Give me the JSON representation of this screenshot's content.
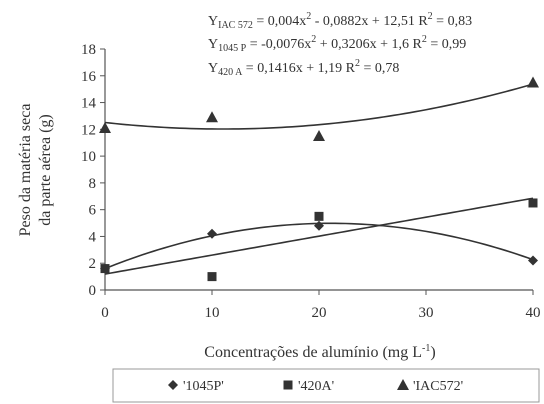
{
  "chart_data": {
    "type": "scatter",
    "x": [
      0,
      10,
      20,
      40
    ],
    "xlim": [
      0,
      40
    ],
    "ylim": [
      0,
      18
    ],
    "xticks": [
      "0",
      "10",
      "20",
      "30",
      "40"
    ],
    "yticks": [
      "0",
      "2",
      "4",
      "6",
      "8",
      "10",
      "12",
      "14",
      "16",
      "18"
    ],
    "xlabel_main": "Concentrações de alumínio (mg L",
    "xlabel_sup": "-1",
    "xlabel_tail": ")",
    "ylabel_line1": "Peso da matéria seca",
    "ylabel_line2": "da parte aérea (g)",
    "grid": false,
    "legend_position": "bottom",
    "series": [
      {
        "name": "'1045P'",
        "marker": "diamond",
        "values": [
          1.6,
          4.2,
          4.8,
          2.2
        ],
        "fit": {
          "a": -0.0076,
          "b": 0.3206,
          "c": 1.6
        }
      },
      {
        "name": "'420A'",
        "marker": "square",
        "values": [
          1.6,
          1.0,
          5.5,
          6.5
        ],
        "fit": {
          "a": 0,
          "b": 0.1416,
          "c": 1.19
        }
      },
      {
        "name": "'IAC572'",
        "marker": "triangle",
        "values": [
          12.1,
          12.9,
          11.5,
          15.5
        ],
        "fit": {
          "a": 0.004,
          "b": -0.0882,
          "c": 12.51
        }
      }
    ],
    "equations": [
      {
        "prefix": "Y",
        "sub": "IAC 572",
        "text1": " = 0,004x",
        "sup1": "2",
        "text2": " - 0,0882x + 12,51  R",
        "sup2": "2",
        "text3": " = 0,83"
      },
      {
        "prefix": "Y",
        "sub": "1045 P",
        "text1": " = -0,0076x",
        "sup1": "2",
        "text2": " + 0,3206x + 1,6  R",
        "sup2": "2",
        "text3": " = 0,99"
      },
      {
        "prefix": "Y",
        "sub": "420 A",
        "text1": " = 0,1416x + 1,19  R",
        "sup1": "2",
        "text2": " = 0,78",
        "sup2": "",
        "text3": ""
      }
    ]
  },
  "colors": {
    "ink": "#333333",
    "axis": "#555555",
    "legend_border": "#999999"
  }
}
